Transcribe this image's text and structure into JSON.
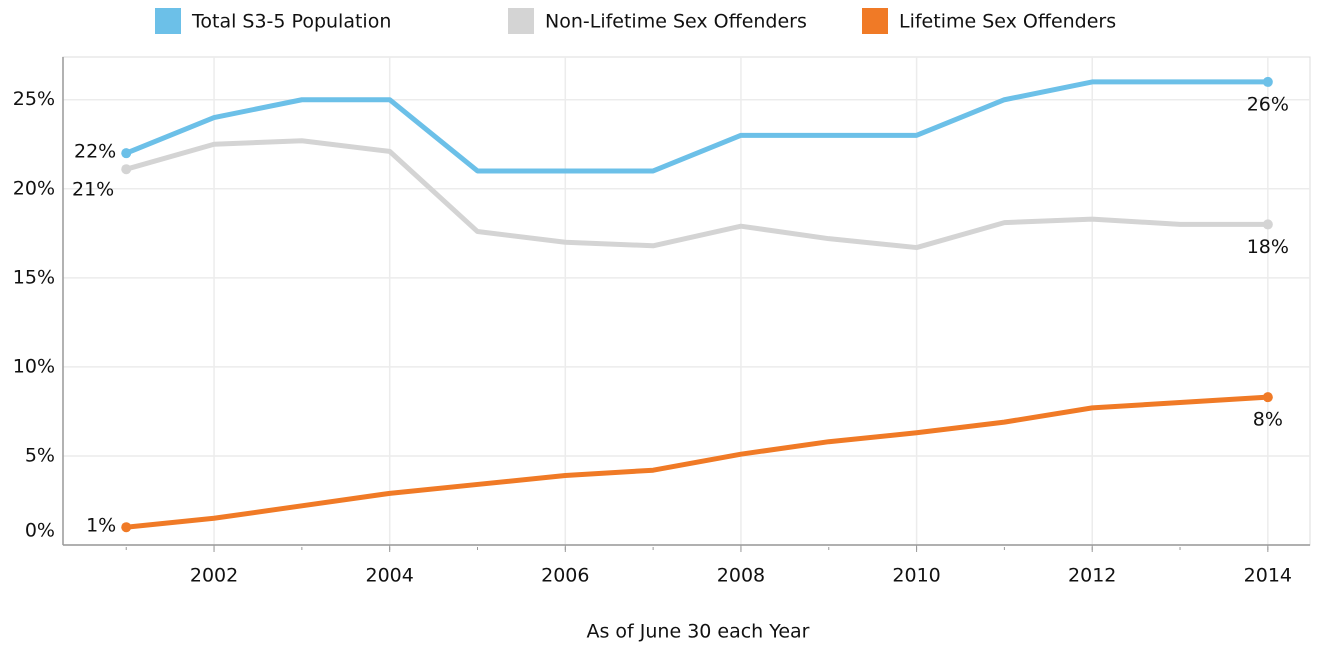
{
  "chart_data": {
    "type": "line",
    "x": [
      2001,
      2002,
      2003,
      2004,
      2005,
      2006,
      2007,
      2008,
      2009,
      2010,
      2011,
      2012,
      2013,
      2014
    ],
    "xlim": [
      2000.28,
      2014.48
    ],
    "xticks": [
      2002,
      2004,
      2006,
      2008,
      2010,
      2012,
      2014
    ],
    "xlabel": "As of June 30 each Year",
    "ylim": [
      0,
      27.4
    ],
    "yticks": [
      {
        "value": 0,
        "label": "0%"
      },
      {
        "value": 5,
        "label": "5%"
      },
      {
        "value": 10,
        "label": "10%"
      },
      {
        "value": 15,
        "label": "15%"
      },
      {
        "value": 20,
        "label": "20%"
      },
      {
        "value": 25,
        "label": "25%"
      }
    ],
    "grid": true,
    "legend": "top",
    "series": [
      {
        "name": "Total S3-5 Population",
        "color": "#6cc0e8",
        "values": [
          22,
          24,
          25,
          25,
          21,
          21,
          21,
          23,
          23,
          23,
          25,
          26,
          26,
          26
        ],
        "value_labels": [
          "22%",
          null,
          null,
          null,
          null,
          null,
          null,
          null,
          null,
          null,
          null,
          null,
          null,
          "26%"
        ]
      },
      {
        "name": "Non-Lifetime Sex Offenders",
        "color": "#d4d4d4",
        "values": [
          21.1,
          22.5,
          22.7,
          22.1,
          17.6,
          17.0,
          16.8,
          17.9,
          17.2,
          16.7,
          18.1,
          18.3,
          18.0,
          18.0
        ],
        "value_labels": [
          "21%",
          null,
          null,
          null,
          null,
          null,
          null,
          null,
          null,
          null,
          null,
          null,
          null,
          "18%"
        ]
      },
      {
        "name": "Lifetime Sex Offenders",
        "color": "#f07a26",
        "values": [
          1.0,
          1.5,
          2.2,
          2.9,
          3.4,
          3.9,
          4.2,
          5.1,
          5.8,
          6.3,
          6.9,
          7.7,
          8.0,
          8.3
        ],
        "value_labels": [
          "1%",
          null,
          null,
          null,
          null,
          null,
          null,
          null,
          null,
          null,
          null,
          null,
          null,
          "8%"
        ]
      }
    ]
  }
}
